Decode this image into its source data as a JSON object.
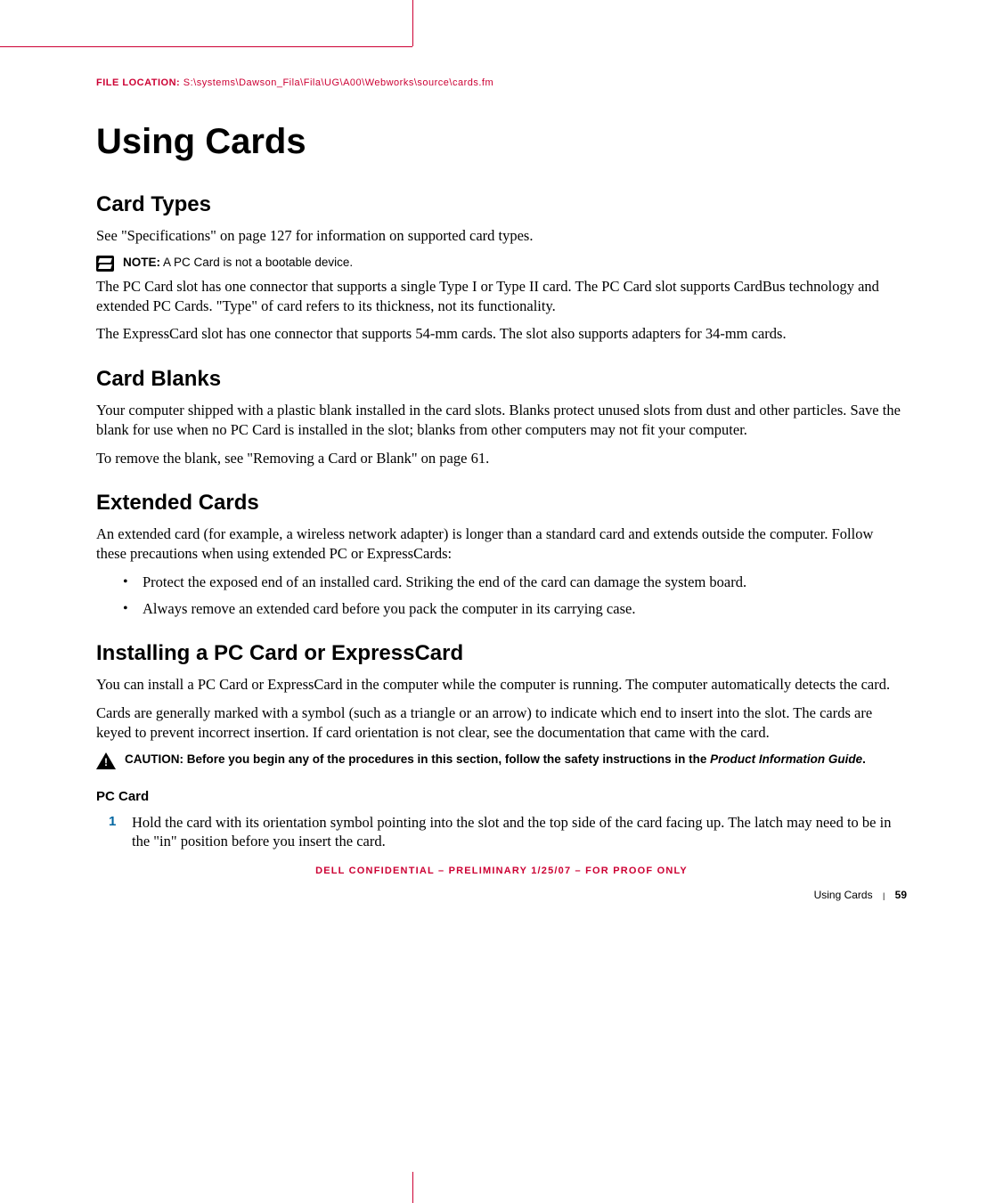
{
  "header": {
    "file_location_label": "FILE LOCATION:",
    "file_location_path": "S:\\systems\\Dawson_Fila\\Fila\\UG\\A00\\Webworks\\source\\cards.fm"
  },
  "title": "Using Cards",
  "sections": {
    "card_types": {
      "heading": "Card Types",
      "intro": "See \"Specifications\" on page 127 for information on supported card types.",
      "note_lead": "NOTE:",
      "note_text": "A PC Card is not a bootable device.",
      "p1": "The PC Card slot has one connector that supports a single Type I or Type II card. The PC Card slot supports CardBus technology and extended PC Cards. \"Type\" of card refers to its thickness, not its functionality.",
      "p2": "The ExpressCard slot has one connector that supports 54-mm cards. The slot also supports adapters for 34-mm cards."
    },
    "card_blanks": {
      "heading": "Card Blanks",
      "p1": "Your computer shipped with a plastic blank installed in the card slots. Blanks protect unused slots from dust and other particles. Save the blank for use when no PC Card is installed in the slot; blanks from other computers may not fit your computer.",
      "p2": "To remove the blank, see \"Removing a Card or Blank\" on page 61."
    },
    "extended_cards": {
      "heading": "Extended Cards",
      "p1": "An extended card (for example, a wireless network adapter) is longer than a standard card and extends outside the computer. Follow these precautions when using extended PC or ExpressCards:",
      "bullets": [
        "Protect the exposed end of an installed card. Striking the end of the card can damage the system board.",
        "Always remove an extended card before you pack the computer in its carrying case."
      ]
    },
    "installing": {
      "heading": "Installing a PC Card or ExpressCard",
      "p1": "You can install a PC Card or ExpressCard in the computer while the computer is running. The computer automatically detects the card.",
      "p2": "Cards are generally marked with a symbol (such as a triangle or an arrow) to indicate which end to insert into the slot. The cards are keyed to prevent incorrect insertion. If card orientation is not clear, see the documentation that came with the card.",
      "caution_lead": "CAUTION:",
      "caution_text_a": "Before you begin any of the procedures in this section, follow the safety instructions in the ",
      "caution_italic": "Product Information Guide",
      "caution_text_b": ".",
      "sub_heading": "PC Card",
      "step_num": "1",
      "step_text": "Hold the card with its orientation symbol pointing into the slot and the top side of the card facing up. The latch may need to be in the \"in\" position before you insert the card."
    }
  },
  "confidential": "DELL CONFIDENTIAL – PRELIMINARY 1/25/07 – FOR PROOF ONLY",
  "footer": {
    "section": "Using Cards",
    "page": "59"
  }
}
